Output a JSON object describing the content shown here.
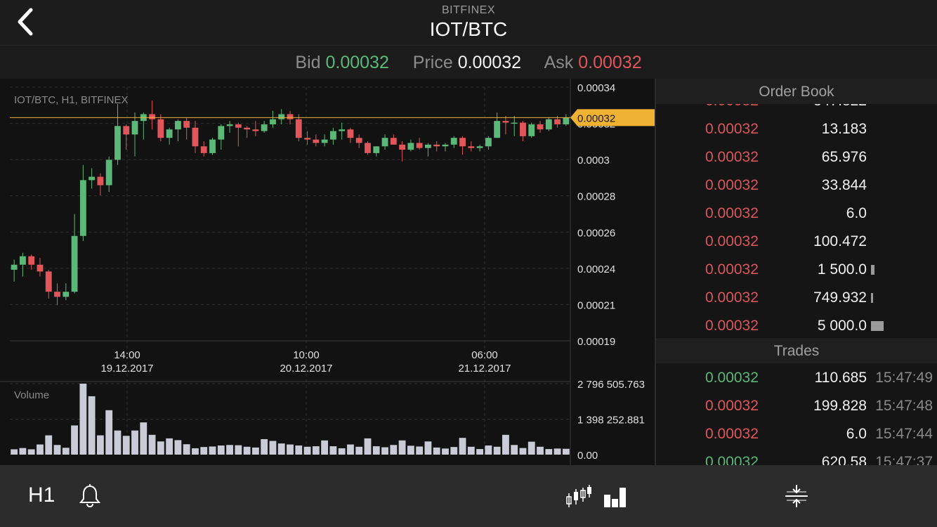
{
  "header": {
    "exchange": "BITFINEX",
    "pair": "IOT/BTC",
    "back_icon": "chevron-left-icon"
  },
  "price_bar": {
    "bid_label": "Bid",
    "bid_value": "0.00032",
    "price_label": "Price",
    "price_value": "0.00032",
    "ask_label": "Ask",
    "ask_value": "0.00032"
  },
  "chart": {
    "title": "IOT/BTC, H1, BITFINEX",
    "volume_label": "Volume",
    "current_price_tag": "0.00032",
    "colors": {
      "up": "#5cb878",
      "down": "#e0565b",
      "price_line": "#f0b232",
      "volume": "#c9ccd6",
      "grid": "#2e2e2e"
    }
  },
  "chart_data": {
    "type": "candlestick",
    "title": "IOT/BTC, H1, BITFINEX",
    "y_axis_ticks": [
      "0.00034",
      "0.00032",
      "0.0003",
      "0.00028",
      "0.00026",
      "0.00024",
      "0.00021",
      "0.00019"
    ],
    "ylim": [
      0.00019,
      0.00034
    ],
    "x_axis_ticks": [
      {
        "time": "14:00",
        "date": "19.12.2017"
      },
      {
        "time": "10:00",
        "date": "20.12.2017"
      },
      {
        "time": "06:00",
        "date": "21.12.2017"
      }
    ],
    "candles": [
      {
        "o": 0.000232,
        "h": 0.000238,
        "l": 0.000225,
        "c": 0.000235
      },
      {
        "o": 0.000235,
        "h": 0.000242,
        "l": 0.000228,
        "c": 0.00024
      },
      {
        "o": 0.00024,
        "h": 0.000241,
        "l": 0.000232,
        "c": 0.000235
      },
      {
        "o": 0.000235,
        "h": 0.000239,
        "l": 0.000228,
        "c": 0.000231
      },
      {
        "o": 0.000231,
        "h": 0.000232,
        "l": 0.000215,
        "c": 0.000219
      },
      {
        "o": 0.000219,
        "h": 0.000224,
        "l": 0.000211,
        "c": 0.000216
      },
      {
        "o": 0.000216,
        "h": 0.000224,
        "l": 0.000214,
        "c": 0.000219
      },
      {
        "o": 0.000219,
        "h": 0.000265,
        "l": 0.000218,
        "c": 0.000252
      },
      {
        "o": 0.000252,
        "h": 0.000294,
        "l": 0.000249,
        "c": 0.000285
      },
      {
        "o": 0.000285,
        "h": 0.000292,
        "l": 0.00028,
        "c": 0.000287
      },
      {
        "o": 0.000287,
        "h": 0.000289,
        "l": 0.000276,
        "c": 0.000282
      },
      {
        "o": 0.000282,
        "h": 0.000299,
        "l": 0.000278,
        "c": 0.000297
      },
      {
        "o": 0.000297,
        "h": 0.00033,
        "l": 0.000294,
        "c": 0.000317
      },
      {
        "o": 0.000317,
        "h": 0.000318,
        "l": 0.000303,
        "c": 0.000312
      },
      {
        "o": 0.000312,
        "h": 0.000325,
        "l": 0.000299,
        "c": 0.00032
      },
      {
        "o": 0.00032,
        "h": 0.000325,
        "l": 0.000309,
        "c": 0.000324
      },
      {
        "o": 0.000324,
        "h": 0.000332,
        "l": 0.000315,
        "c": 0.000321
      },
      {
        "o": 0.000321,
        "h": 0.000324,
        "l": 0.000308,
        "c": 0.00031
      },
      {
        "o": 0.00031,
        "h": 0.000316,
        "l": 0.000306,
        "c": 0.000315
      },
      {
        "o": 0.000315,
        "h": 0.000321,
        "l": 0.000308,
        "c": 0.00032
      },
      {
        "o": 0.00032,
        "h": 0.000322,
        "l": 0.000309,
        "c": 0.000316
      },
      {
        "o": 0.000316,
        "h": 0.00032,
        "l": 0.000301,
        "c": 0.000305
      },
      {
        "o": 0.000305,
        "h": 0.000308,
        "l": 0.000299,
        "c": 0.000301
      },
      {
        "o": 0.000301,
        "h": 0.00031,
        "l": 0.0003,
        "c": 0.000309
      },
      {
        "o": 0.000309,
        "h": 0.000318,
        "l": 0.000303,
        "c": 0.000317
      },
      {
        "o": 0.000317,
        "h": 0.00032,
        "l": 0.000313,
        "c": 0.000318
      },
      {
        "o": 0.000318,
        "h": 0.000319,
        "l": 0.000305,
        "c": 0.000316
      },
      {
        "o": 0.000316,
        "h": 0.000317,
        "l": 0.00031,
        "c": 0.000315
      },
      {
        "o": 0.000315,
        "h": 0.00032,
        "l": 0.000311,
        "c": 0.000314
      },
      {
        "o": 0.000314,
        "h": 0.00032,
        "l": 0.000313,
        "c": 0.000318
      },
      {
        "o": 0.000318,
        "h": 0.000326,
        "l": 0.000316,
        "c": 0.000321
      },
      {
        "o": 0.000321,
        "h": 0.000327,
        "l": 0.000318,
        "c": 0.000324
      },
      {
        "o": 0.000324,
        "h": 0.000326,
        "l": 0.000318,
        "c": 0.000321
      },
      {
        "o": 0.000321,
        "h": 0.000324,
        "l": 0.000308,
        "c": 0.00031
      },
      {
        "o": 0.00031,
        "h": 0.000314,
        "l": 0.000306,
        "c": 0.000309
      },
      {
        "o": 0.000309,
        "h": 0.000312,
        "l": 0.000305,
        "c": 0.000307
      },
      {
        "o": 0.000307,
        "h": 0.000312,
        "l": 0.000305,
        "c": 0.000309
      },
      {
        "o": 0.000309,
        "h": 0.000316,
        "l": 0.000306,
        "c": 0.000314
      },
      {
        "o": 0.000314,
        "h": 0.000319,
        "l": 0.000309,
        "c": 0.000315
      },
      {
        "o": 0.000315,
        "h": 0.000316,
        "l": 0.000307,
        "c": 0.00031
      },
      {
        "o": 0.00031,
        "h": 0.000312,
        "l": 0.000304,
        "c": 0.000307
      },
      {
        "o": 0.000307,
        "h": 0.000308,
        "l": 0.0003,
        "c": 0.000301
      },
      {
        "o": 0.000301,
        "h": 0.000305,
        "l": 0.000299,
        "c": 0.000305
      },
      {
        "o": 0.000305,
        "h": 0.000312,
        "l": 0.000303,
        "c": 0.00031
      },
      {
        "o": 0.00031,
        "h": 0.000312,
        "l": 0.000306,
        "c": 0.000306
      },
      {
        "o": 0.000306,
        "h": 0.000308,
        "l": 0.000296,
        "c": 0.000303
      },
      {
        "o": 0.000303,
        "h": 0.000309,
        "l": 0.000302,
        "c": 0.000307
      },
      {
        "o": 0.000307,
        "h": 0.00031,
        "l": 0.000303,
        "c": 0.000304
      },
      {
        "o": 0.000304,
        "h": 0.000307,
        "l": 0.000299,
        "c": 0.000306
      },
      {
        "o": 0.000306,
        "h": 0.000308,
        "l": 0.000302,
        "c": 0.000305
      },
      {
        "o": 0.000305,
        "h": 0.000307,
        "l": 0.000302,
        "c": 0.000306
      },
      {
        "o": 0.000306,
        "h": 0.000311,
        "l": 0.000304,
        "c": 0.00031
      },
      {
        "o": 0.00031,
        "h": 0.000311,
        "l": 0.0003,
        "c": 0.000305
      },
      {
        "o": 0.000305,
        "h": 0.000308,
        "l": 0.000302,
        "c": 0.000304
      },
      {
        "o": 0.000304,
        "h": 0.000306,
        "l": 0.000302,
        "c": 0.000305
      },
      {
        "o": 0.000305,
        "h": 0.000311,
        "l": 0.000303,
        "c": 0.00031
      },
      {
        "o": 0.00031,
        "h": 0.000325,
        "l": 0.00031,
        "c": 0.00032
      },
      {
        "o": 0.00032,
        "h": 0.000323,
        "l": 0.000312,
        "c": 0.000319
      },
      {
        "o": 0.000319,
        "h": 0.000323,
        "l": 0.000311,
        "c": 0.000319
      },
      {
        "o": 0.000319,
        "h": 0.00032,
        "l": 0.000308,
        "c": 0.000311
      },
      {
        "o": 0.000311,
        "h": 0.000319,
        "l": 0.00031,
        "c": 0.000318
      },
      {
        "o": 0.000318,
        "h": 0.00032,
        "l": 0.000313,
        "c": 0.000315
      },
      {
        "o": 0.000315,
        "h": 0.000322,
        "l": 0.000314,
        "c": 0.000321
      },
      {
        "o": 0.000321,
        "h": 0.000323,
        "l": 0.000316,
        "c": 0.000318
      },
      {
        "o": 0.000318,
        "h": 0.000324,
        "l": 0.000317,
        "c": 0.000322
      }
    ],
    "volume": {
      "label": "Volume",
      "ticks": [
        "2 796 505.763",
        "1 398 252.881",
        "0.00"
      ],
      "ylim": [
        0,
        2796505.763
      ],
      "values": [
        210000,
        260000,
        210000,
        400000,
        760000,
        380000,
        270000,
        1150000,
        2796505,
        2300000,
        760000,
        1750000,
        950000,
        740000,
        950000,
        1270000,
        780000,
        520000,
        640000,
        570000,
        410000,
        250000,
        300000,
        320000,
        360000,
        380000,
        370000,
        310000,
        280000,
        610000,
        540000,
        440000,
        400000,
        360000,
        310000,
        330000,
        560000,
        330000,
        250000,
        400000,
        310000,
        640000,
        330000,
        290000,
        380000,
        560000,
        350000,
        320000,
        520000,
        280000,
        240000,
        300000,
        660000,
        310000,
        220000,
        360000,
        310000,
        780000,
        380000,
        260000,
        510000,
        310000,
        220000,
        240000,
        230000
      ]
    }
  },
  "order_book": {
    "title": "Order Book",
    "rows": [
      {
        "price": "0.00032",
        "amount": "13.183",
        "depth": 0
      },
      {
        "price": "0.00032",
        "amount": "65.976",
        "depth": 0
      },
      {
        "price": "0.00032",
        "amount": "33.844",
        "depth": 0
      },
      {
        "price": "0.00032",
        "amount": "6.0",
        "depth": 0
      },
      {
        "price": "0.00032",
        "amount": "100.472",
        "depth": 0
      },
      {
        "price": "0.00032",
        "amount": "1 500.0",
        "depth": 0.3
      },
      {
        "price": "0.00032",
        "amount": "749.932",
        "depth": 0.15
      },
      {
        "price": "0.00032",
        "amount": "5 000.0",
        "depth": 1.0
      }
    ]
  },
  "trades": {
    "title": "Trades",
    "rows": [
      {
        "price": "0.00032",
        "side": "buy",
        "amount": "110.685",
        "time": "15:47:49"
      },
      {
        "price": "0.00032",
        "side": "sell",
        "amount": "199.828",
        "time": "15:47:48"
      },
      {
        "price": "0.00032",
        "side": "sell",
        "amount": "6.0",
        "time": "15:47:44"
      }
    ]
  },
  "bottom_bar": {
    "timeframe": "H1",
    "icons": [
      "bell-icon",
      "candlestick-chart-icon",
      "bar-chart-icon",
      "crosshair-icon"
    ]
  }
}
